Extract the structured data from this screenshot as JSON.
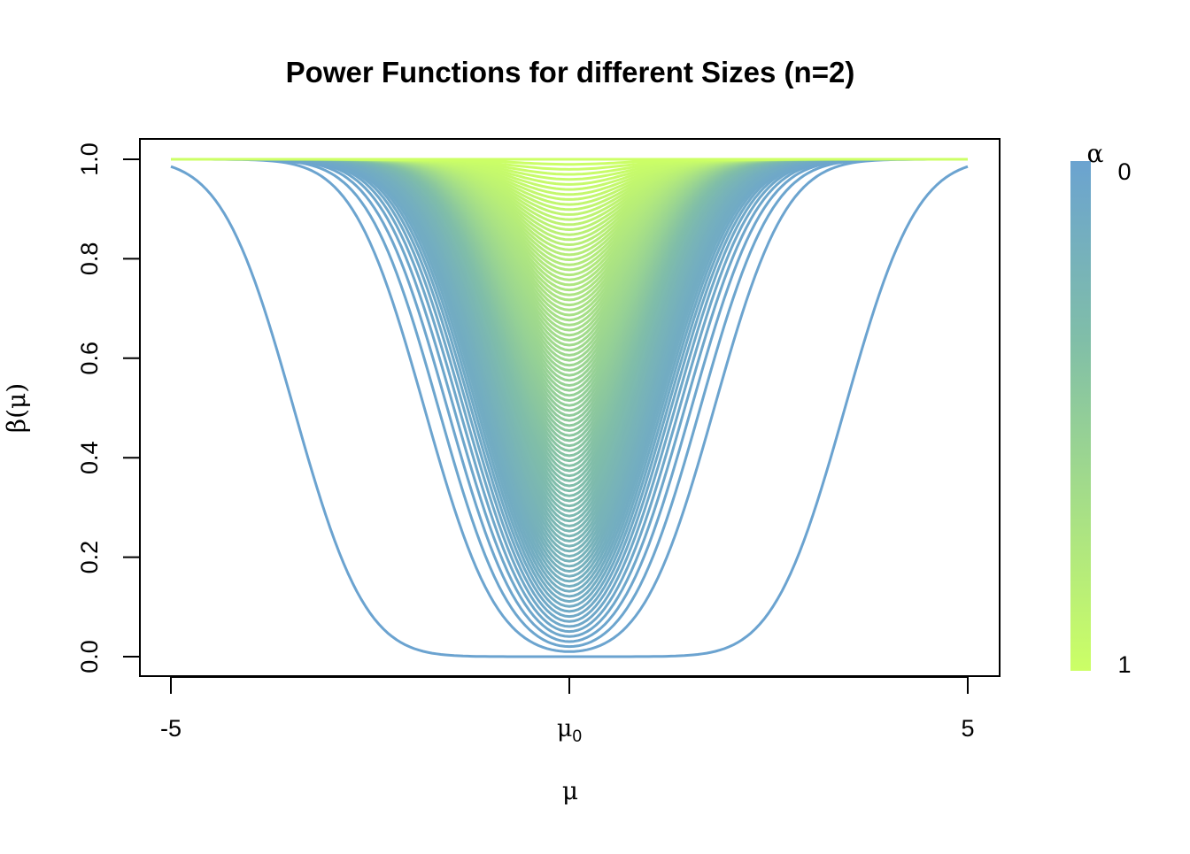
{
  "chart_data": {
    "type": "line",
    "title": "Power Functions for different Sizes (n=2)",
    "xlabel": "μ",
    "ylabel": "β(μ)",
    "xlim": [
      -5,
      5
    ],
    "ylim": [
      0,
      1
    ],
    "x_ticks": [
      {
        "value": -5,
        "label": "-5"
      },
      {
        "value": 0,
        "label": "μ",
        "sub": "0"
      },
      {
        "value": 5,
        "label": "5"
      }
    ],
    "y_ticks": [
      {
        "value": 0.0,
        "label": "0.0"
      },
      {
        "value": 0.2,
        "label": "0.2"
      },
      {
        "value": 0.4,
        "label": "0.4"
      },
      {
        "value": 0.6,
        "label": "0.6"
      },
      {
        "value": 0.8,
        "label": "0.8"
      },
      {
        "value": 1.0,
        "label": "1.0"
      }
    ],
    "grid": false,
    "series_family": {
      "description": "beta(mu) = 1 - Phi(z - sqrt(n) mu) + Phi(-z - sqrt(n) mu), z = Phi^-1(1 - alpha/2)",
      "n": 2,
      "alpha_min": 1e-06,
      "alpha_max": 1,
      "curve_count": 100,
      "line_width": 3
    },
    "colorbar": {
      "title": "α",
      "placement": "right",
      "top_label": "0",
      "bottom_label": "1",
      "color_low": "#6BA3D0",
      "color_mid": "#80BEA8",
      "color_high": "#CCFF66"
    }
  }
}
